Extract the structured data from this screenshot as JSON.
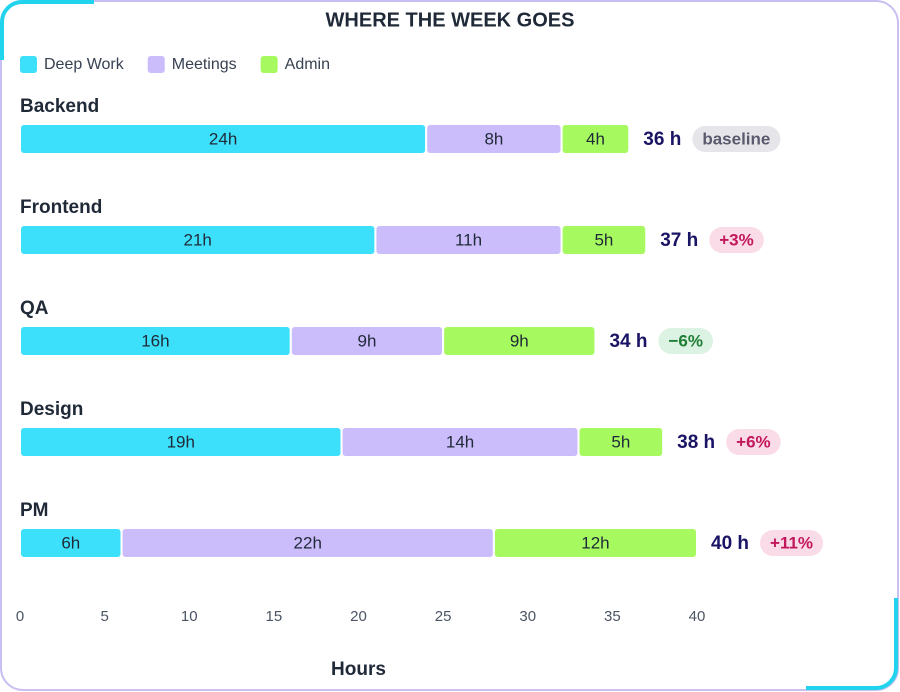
{
  "chart_data": {
    "type": "stacked-bar",
    "title": "WHERE THE WEEK GOES",
    "categories": [
      "Backend",
      "Frontend",
      "QA",
      "Design",
      "PM"
    ],
    "series": [
      {
        "name": "Deep Work",
        "color": "#3de0fb",
        "values": [
          24,
          21,
          16,
          19,
          6
        ],
        "value_labels": [
          "24h",
          "21h",
          "16h",
          "19h",
          "6h"
        ]
      },
      {
        "name": "Meetings",
        "color": "#cbbcfb",
        "values": [
          8,
          11,
          9,
          14,
          22
        ],
        "value_labels": [
          "8h",
          "11h",
          "9h",
          "14h",
          "22h"
        ]
      },
      {
        "name": "Admin",
        "color": "#a6fa5f",
        "values": [
          4,
          5,
          9,
          5,
          12
        ],
        "value_labels": [
          "4h",
          "5h",
          "9h",
          "5h",
          "12h"
        ]
      }
    ],
    "totals": {
      "values": [
        36,
        37,
        34,
        38,
        40
      ],
      "value_labels": [
        "36 h",
        "37 h",
        "34 h",
        "38 h",
        "40 h"
      ]
    },
    "badges": {
      "labels": [
        "baseline",
        "+3%",
        "−6%",
        "+6%",
        "+11%"
      ],
      "colors": [
        "#e6e6ea",
        "#fadbe8",
        "#dcf2e2",
        "#fadbe8",
        "#fadbe8"
      ],
      "text_colors": [
        "#5a5a6e",
        "#c2185b",
        "#1e7e34",
        "#c2185b",
        "#c2185b"
      ]
    },
    "xlim": [
      0,
      40
    ],
    "xticks": [
      0,
      5,
      10,
      15,
      20,
      25,
      30,
      35,
      40
    ],
    "xlabel": "Hours",
    "legend": "top-left"
  }
}
